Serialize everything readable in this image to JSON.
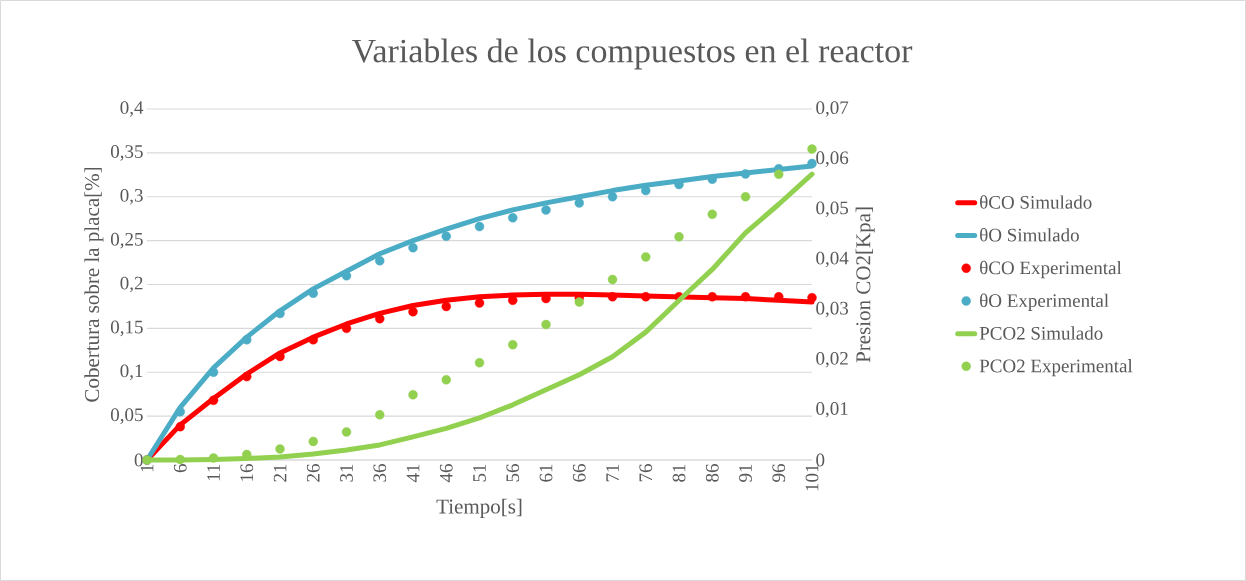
{
  "chart_data": {
    "type": "line",
    "title": "Variables de los compuestos en el reactor",
    "xlabel": "Tiempo[s]",
    "ylabel": "Cobertura sobre la placa[%]",
    "y2label": "Presion CO2[Kpa]",
    "x": [
      1,
      6,
      11,
      16,
      21,
      26,
      31,
      36,
      41,
      46,
      51,
      56,
      61,
      66,
      71,
      76,
      81,
      86,
      91,
      96,
      101
    ],
    "xlim": [
      1,
      101
    ],
    "xticks": [
      1,
      6,
      11,
      16,
      21,
      26,
      31,
      36,
      41,
      46,
      51,
      56,
      61,
      66,
      71,
      76,
      81,
      86,
      91,
      96,
      101
    ],
    "ylim": [
      0,
      0.4
    ],
    "yticks": [
      {
        "value": 0,
        "label": "0"
      },
      {
        "value": 0.05,
        "label": "0,05"
      },
      {
        "value": 0.1,
        "label": "0,1"
      },
      {
        "value": 0.15,
        "label": "0,15"
      },
      {
        "value": 0.2,
        "label": "0,2"
      },
      {
        "value": 0.25,
        "label": "0,25"
      },
      {
        "value": 0.3,
        "label": "0,3"
      },
      {
        "value": 0.35,
        "label": "0,35"
      },
      {
        "value": 0.4,
        "label": "0,4"
      }
    ],
    "y2lim": [
      0,
      0.07
    ],
    "y2ticks": [
      {
        "value": 0,
        "label": "0"
      },
      {
        "value": 0.01,
        "label": "0,01"
      },
      {
        "value": 0.02,
        "label": "0,02"
      },
      {
        "value": 0.03,
        "label": "0,03"
      },
      {
        "value": 0.04,
        "label": "0,04"
      },
      {
        "value": 0.05,
        "label": "0,05"
      },
      {
        "value": 0.06,
        "label": "0,06"
      },
      {
        "value": 0.07,
        "label": "0,07"
      }
    ],
    "grid": "y",
    "legend": "right",
    "marker": "circle",
    "series": [
      {
        "name": "θCO Simulado",
        "marker": "none",
        "color": "#ff0000",
        "values": [
          0,
          0.04,
          0.07,
          0.098,
          0.122,
          0.14,
          0.155,
          0.167,
          0.176,
          0.182,
          0.186,
          0.188,
          0.189,
          0.189,
          0.188,
          0.187,
          0.186,
          0.185,
          0.184,
          0.182,
          0.18
        ]
      },
      {
        "name": "θO Simulado",
        "marker": "none",
        "color": "#4bacc6",
        "values": [
          0,
          0.06,
          0.105,
          0.14,
          0.17,
          0.195,
          0.215,
          0.235,
          0.25,
          0.263,
          0.275,
          0.285,
          0.293,
          0.3,
          0.307,
          0.313,
          0.318,
          0.323,
          0.327,
          0.331,
          0.335
        ]
      },
      {
        "name": "θCO Experimental",
        "type": "scatter",
        "color": "#ff0000",
        "values": [
          0,
          0.038,
          0.068,
          0.095,
          0.118,
          0.137,
          0.15,
          0.161,
          0.169,
          0.175,
          0.179,
          0.182,
          0.184,
          0.185,
          0.186,
          0.186,
          0.186,
          0.186,
          0.186,
          0.186,
          0.185
        ]
      },
      {
        "name": "θO Experimental",
        "type": "scatter",
        "color": "#4bacc6",
        "values": [
          0,
          0.055,
          0.1,
          0.137,
          0.167,
          0.19,
          0.21,
          0.227,
          0.242,
          0.255,
          0.266,
          0.276,
          0.285,
          0.293,
          0.3,
          0.307,
          0.314,
          0.32,
          0.326,
          0.332,
          0.338
        ]
      },
      {
        "name": "PCO2 Simulado",
        "marker": "none",
        "axis": "y2",
        "color": "#92d050",
        "values": [
          0,
          0,
          0.0001,
          0.0003,
          0.0006,
          0.0012,
          0.002,
          0.003,
          0.0046,
          0.0063,
          0.0084,
          0.011,
          0.014,
          0.017,
          0.0206,
          0.0255,
          0.0318,
          0.038,
          0.0453,
          0.051,
          0.057
        ]
      },
      {
        "name": "PCO2 Experimental",
        "type": "scatter",
        "axis": "y2",
        "color": "#92d050",
        "values": [
          0,
          0.0001,
          0.0004,
          0.0011,
          0.0022,
          0.0037,
          0.0056,
          0.009,
          0.013,
          0.016,
          0.0194,
          0.023,
          0.027,
          0.0315,
          0.036,
          0.0405,
          0.0445,
          0.049,
          0.0525,
          0.057,
          0.062
        ]
      }
    ]
  }
}
